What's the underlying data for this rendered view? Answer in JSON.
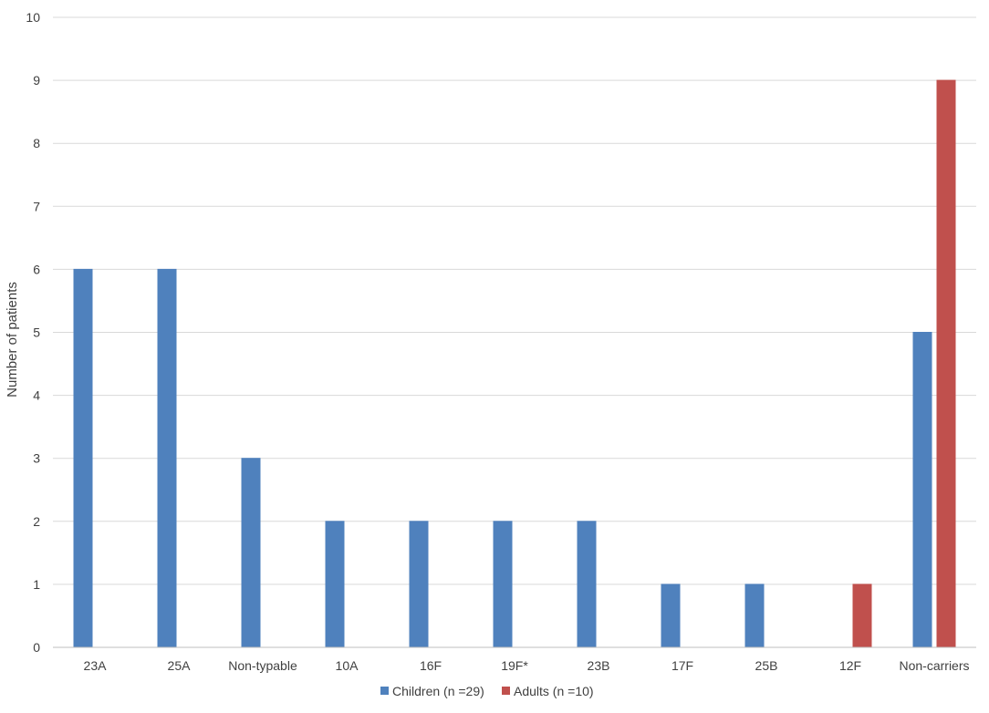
{
  "chart_data": {
    "type": "bar",
    "title": "",
    "xlabel": "",
    "ylabel": "Number of patients",
    "ylim": [
      0,
      10
    ],
    "yticks": [
      "0",
      "1",
      "2",
      "3",
      "4",
      "5",
      "6",
      "7",
      "8",
      "9",
      "10"
    ],
    "grid": true,
    "legend_position": "bottom",
    "categories": [
      "23A",
      "25A",
      "Non-typable",
      "10A",
      "16F",
      "19F*",
      "23B",
      "17F",
      "25B",
      "12F",
      "Non-carriers"
    ],
    "series": [
      {
        "name": "Children (n =29)",
        "color": "#4f81bd",
        "values": [
          6,
          6,
          3,
          2,
          2,
          2,
          2,
          1,
          1,
          0,
          5
        ]
      },
      {
        "name": "Adults (n =10)",
        "color": "#c0504d",
        "values": [
          0,
          0,
          0,
          0,
          0,
          0,
          0,
          0,
          0,
          1,
          9
        ]
      }
    ]
  }
}
